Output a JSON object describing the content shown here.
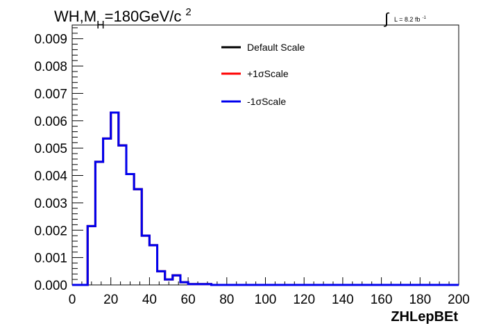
{
  "chart_data": {
    "type": "line",
    "title": {
      "main": "WH,M",
      "subscript": "H",
      "rest": "=180GeV/c",
      "superscript": "2"
    },
    "lumi_label": {
      "integral": "∫",
      "text": "L = 8.2 fb",
      "superscript": "-1"
    },
    "xlabel": "ZHLepBEt",
    "ylabel": "",
    "xlim": [
      0,
      200
    ],
    "ylim": [
      0,
      0.0095
    ],
    "x_ticks": [
      0,
      20,
      40,
      60,
      80,
      100,
      120,
      140,
      160,
      180,
      200
    ],
    "x_tick_labels": [
      "0",
      "20",
      "40",
      "60",
      "80",
      "100",
      "120",
      "140",
      "160",
      "180",
      "200"
    ],
    "y_ticks": [
      0,
      0.001,
      0.002,
      0.003,
      0.004,
      0.005,
      0.006,
      0.007,
      0.008,
      0.009
    ],
    "y_tick_labels": [
      "0.000",
      "0.001",
      "0.002",
      "0.003",
      "0.004",
      "0.005",
      "0.006",
      "0.007",
      "0.008",
      "0.009"
    ],
    "grid": false,
    "legend_position": "top-right",
    "bin_edges": [
      0,
      4,
      8,
      12,
      16,
      20,
      24,
      28,
      32,
      36,
      40,
      44,
      48,
      52,
      56,
      60,
      64,
      68,
      72,
      76,
      80,
      84,
      88,
      92,
      96,
      100,
      104,
      108,
      112,
      116,
      120,
      124,
      128,
      132,
      136,
      140,
      144,
      148,
      152,
      156,
      160,
      164,
      168,
      172,
      176,
      180,
      184,
      188,
      192,
      196,
      200
    ],
    "series": [
      {
        "name": "Default Scale",
        "color": "#000000",
        "values": [
          0,
          0,
          0.00215,
          0.0045,
          0.00535,
          0.0063,
          0.0051,
          0.00405,
          0.0035,
          0.0018,
          0.00145,
          0.0005,
          0.0002,
          0.00035,
          0.0001,
          3e-05,
          3e-05,
          3e-05,
          0,
          0,
          0,
          0,
          0,
          0,
          0,
          0,
          0,
          0,
          0,
          0,
          0,
          0,
          0,
          0,
          0,
          0,
          0,
          0,
          0,
          0,
          0,
          0,
          0,
          0,
          0,
          0,
          0,
          0,
          0,
          0
        ]
      },
      {
        "name": "+1σScale",
        "color": "#ff0000",
        "values": [
          0,
          0,
          0.00215,
          0.0045,
          0.00535,
          0.0063,
          0.0051,
          0.00405,
          0.0035,
          0.0018,
          0.00145,
          0.0005,
          0.0002,
          0.00035,
          0.0001,
          3e-05,
          3e-05,
          3e-05,
          0,
          0,
          0,
          0,
          0,
          0,
          0,
          0,
          0,
          0,
          0,
          0,
          0,
          0,
          0,
          0,
          0,
          0,
          0,
          0,
          0,
          0,
          0,
          0,
          0,
          0,
          0,
          0,
          0,
          0,
          0,
          0
        ]
      },
      {
        "name": "-1σScale",
        "color": "#0000ee",
        "values": [
          0,
          0,
          0.00215,
          0.0045,
          0.00535,
          0.0063,
          0.0051,
          0.00405,
          0.0035,
          0.0018,
          0.00145,
          0.0005,
          0.0002,
          0.00035,
          0.0001,
          3e-05,
          3e-05,
          3e-05,
          0,
          0,
          0,
          0,
          0,
          0,
          0,
          0,
          0,
          0,
          0,
          0,
          0,
          0,
          0,
          0,
          0,
          0,
          0,
          0,
          0,
          0,
          0,
          0,
          0,
          0,
          0,
          0,
          0,
          0,
          0,
          0
        ]
      }
    ]
  }
}
